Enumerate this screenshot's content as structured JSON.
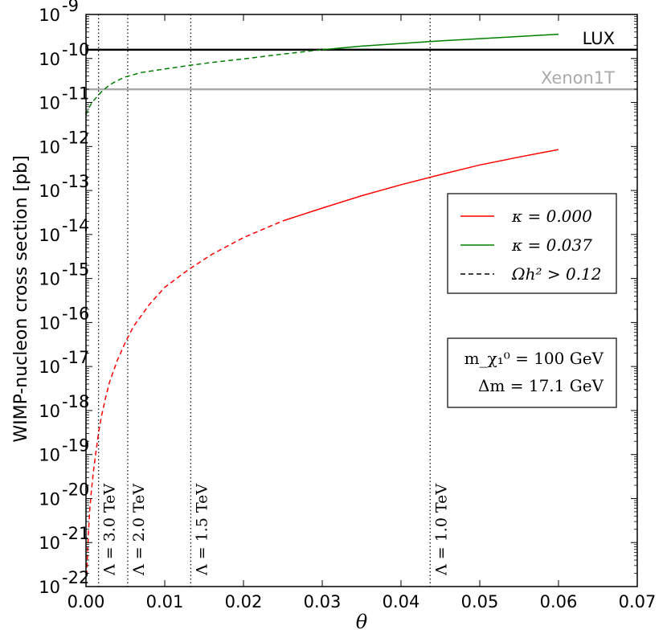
{
  "chart_data": {
    "type": "line",
    "ylabel": "WIMP-nucleon cross section [pb]",
    "xlabel": "θ",
    "x_ticks": [
      "0.00",
      "0.01",
      "0.02",
      "0.03",
      "0.04",
      "0.05",
      "0.06",
      "0.07"
    ],
    "xlim": [
      0,
      0.07
    ],
    "y_scale": "log",
    "ylim_exponent": [
      -22,
      -9
    ],
    "y_ticks": [
      {
        "base": "10",
        "exp": "-22"
      },
      {
        "base": "10",
        "exp": "-21"
      },
      {
        "base": "10",
        "exp": "-20"
      },
      {
        "base": "10",
        "exp": "-19"
      },
      {
        "base": "10",
        "exp": "-18"
      },
      {
        "base": "10",
        "exp": "-17"
      },
      {
        "base": "10",
        "exp": "-16"
      },
      {
        "base": "10",
        "exp": "-15"
      },
      {
        "base": "10",
        "exp": "-14"
      },
      {
        "base": "10",
        "exp": "-13"
      },
      {
        "base": "10",
        "exp": "-12"
      },
      {
        "base": "10",
        "exp": "-11"
      },
      {
        "base": "10",
        "exp": "-10"
      },
      {
        "base": "10",
        "exp": "-9"
      }
    ],
    "grid": false,
    "legend_position": "right",
    "series": [
      {
        "name": "κ = 0.000",
        "color": "#ff0000",
        "dashed_until_x": 0.0295,
        "points": [
          [
            0.0001,
            -21.75
          ],
          [
            0.0002,
            -21.2
          ],
          [
            0.0003,
            -20.8
          ],
          [
            0.0005,
            -20.2
          ],
          [
            0.0007,
            -19.8
          ],
          [
            0.001,
            -19.3
          ],
          [
            0.0013,
            -18.9
          ],
          [
            0.0016,
            -18.5
          ],
          [
            0.002,
            -18.1
          ],
          [
            0.0025,
            -17.7
          ],
          [
            0.003,
            -17.35
          ],
          [
            0.004,
            -16.85
          ],
          [
            0.005,
            -16.45
          ],
          [
            0.006,
            -16.1
          ],
          [
            0.008,
            -15.6
          ],
          [
            0.01,
            -15.2
          ],
          [
            0.013,
            -14.8
          ],
          [
            0.016,
            -14.45
          ],
          [
            0.02,
            -14.07
          ],
          [
            0.025,
            -13.69
          ],
          [
            0.03,
            -13.4
          ],
          [
            0.035,
            -13.12
          ],
          [
            0.04,
            -12.87
          ],
          [
            0.045,
            -12.64
          ],
          [
            0.05,
            -12.42
          ],
          [
            0.055,
            -12.24
          ],
          [
            0.06,
            -12.07
          ]
        ]
      },
      {
        "name": "κ = 0.037",
        "color": "#008000",
        "dashed_until_x": 0.0305,
        "points": [
          [
            0.0,
            -11.28
          ],
          [
            0.0003,
            -11.15
          ],
          [
            0.0006,
            -11.05
          ],
          [
            0.001,
            -10.95
          ],
          [
            0.0015,
            -10.85
          ],
          [
            0.002,
            -10.75
          ],
          [
            0.003,
            -10.6
          ],
          [
            0.004,
            -10.5
          ],
          [
            0.005,
            -10.42
          ],
          [
            0.007,
            -10.32
          ],
          [
            0.01,
            -10.24
          ],
          [
            0.013,
            -10.16
          ],
          [
            0.016,
            -10.09
          ],
          [
            0.02,
            -10.01
          ],
          [
            0.025,
            -9.9
          ],
          [
            0.03,
            -9.8
          ],
          [
            0.035,
            -9.72
          ],
          [
            0.04,
            -9.66
          ],
          [
            0.045,
            -9.6
          ],
          [
            0.05,
            -9.55
          ],
          [
            0.055,
            -9.5
          ],
          [
            0.06,
            -9.45
          ]
        ]
      }
    ],
    "horizontal_lines": [
      {
        "label": "LUX",
        "exp": -9.8,
        "color": "#000000"
      },
      {
        "label": "Xenon1T",
        "exp": -10.7,
        "color": "#aaaaaa"
      }
    ],
    "vertical_lines": [
      {
        "x": 0.0016,
        "label": "Λ = 3.0 TeV"
      },
      {
        "x": 0.0053,
        "label": "Λ = 2.0 TeV"
      },
      {
        "x": 0.0133,
        "label": "Λ = 1.5 TeV"
      },
      {
        "x": 0.0437,
        "label": "Λ = 1.0 TeV"
      }
    ],
    "legend": [
      {
        "label": "κ = 0.000",
        "color": "#ff0000",
        "style": "solid"
      },
      {
        "label": "κ = 0.037",
        "color": "#008000",
        "style": "solid"
      },
      {
        "label": "Ωh² > 0.12",
        "color": "#000000",
        "style": "dashed"
      }
    ],
    "info_box": [
      "m_χ₁⁰ = 100 GeV",
      "Δm = 17.1 GeV"
    ]
  }
}
